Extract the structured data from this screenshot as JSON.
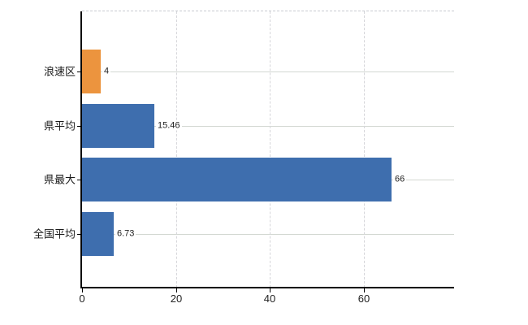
{
  "chart_data": {
    "type": "bar",
    "orientation": "horizontal",
    "title": "",
    "xlabel": "",
    "ylabel": "",
    "categories": [
      "浪速区",
      "県平均",
      "県最大",
      "全国平均"
    ],
    "values": [
      4,
      15.46,
      66,
      6.73
    ],
    "value_labels": [
      "4",
      "15.46",
      "66",
      "6.73"
    ],
    "bar_colors": [
      "#ec943e",
      "#3e6eae",
      "#3e6eae",
      "#3e6eae"
    ],
    "x_ticks": [
      {
        "value": 0,
        "label": "0"
      },
      {
        "value": 20,
        "label": "20"
      },
      {
        "value": 40,
        "label": "40"
      },
      {
        "value": 60,
        "label": "60"
      }
    ],
    "xlim": [
      0,
      79.3
    ],
    "grid": {
      "horizontal": true,
      "vertical": true
    },
    "legend": null,
    "colors": {
      "axis": "#000000",
      "gridline_horizontal": "#d3d8d2",
      "gridline_vertical": "#d6d6da",
      "top_border": "#c8cbd2",
      "category_label": "#1a1a1a",
      "value_label": "#222222",
      "tick_label": "#222222",
      "background": "#ffffff"
    }
  }
}
